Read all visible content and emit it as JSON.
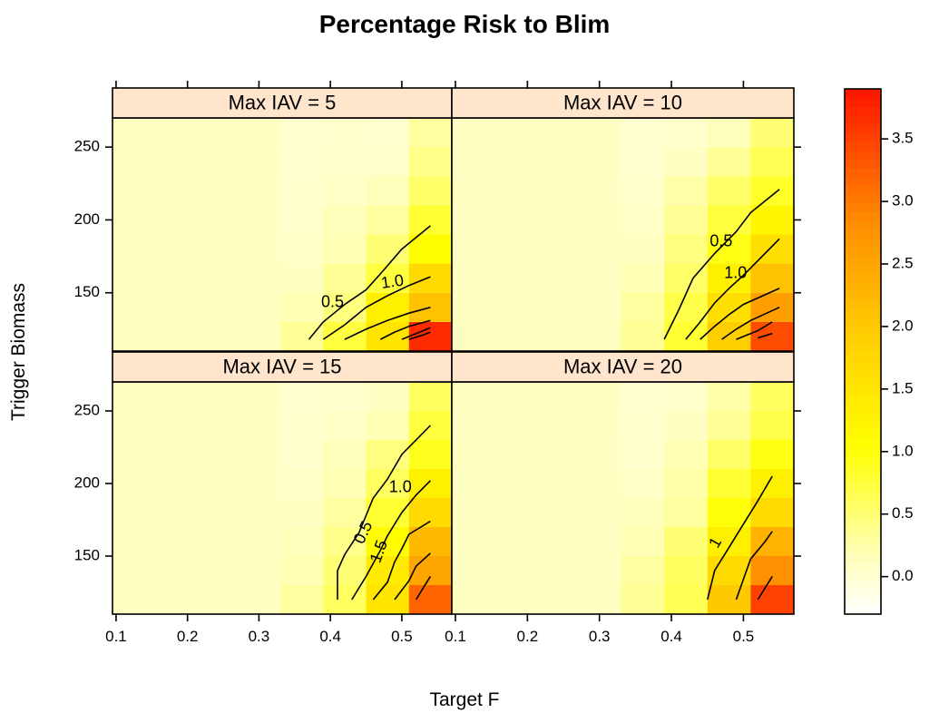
{
  "chart_data": {
    "type": "heatmap",
    "title": "Percentage Risk to Blim",
    "xlabel": "Target F",
    "ylabel": "Trigger Biomass",
    "xlim": [
      0.095,
      0.57
    ],
    "ylim": [
      110,
      270
    ],
    "x_ticks": [
      0.1,
      0.2,
      0.3,
      0.4,
      0.5
    ],
    "x_tick_labels": [
      "0.1",
      "0.2",
      "0.3",
      "0.4",
      "0.5"
    ],
    "y_ticks": [
      150,
      200,
      250
    ],
    "y_tick_labels": [
      "150",
      "200",
      "250"
    ],
    "colorbar": {
      "ticks": [
        0.0,
        0.5,
        1.0,
        1.5,
        2.0,
        2.5,
        3.0,
        3.5
      ],
      "tick_labels": [
        "0.0",
        "0.5",
        "1.0",
        "1.5",
        "2.0",
        "2.5",
        "3.0",
        "3.5"
      ],
      "range": [
        -0.3,
        3.9
      ]
    },
    "grid_x": [
      0.36,
      0.42,
      0.48,
      0.54
    ],
    "grid_y": [
      120,
      140,
      160,
      180,
      200,
      220,
      240,
      260
    ],
    "panels": [
      {
        "label": "Max IAV = 5",
        "values": [
          [
            0.35,
            0.75,
            1.5,
            3.7
          ],
          [
            0.2,
            0.45,
            1.3,
            2.1
          ],
          [
            0.1,
            0.35,
            0.75,
            1.7
          ],
          [
            0.08,
            0.2,
            0.5,
            1.1
          ],
          [
            0.05,
            0.15,
            0.3,
            0.8
          ],
          [
            0.03,
            0.08,
            0.15,
            0.55
          ],
          [
            0.02,
            0.05,
            0.06,
            0.4
          ],
          [
            0.02,
            0.03,
            0.02,
            0.3
          ]
        ],
        "contours": [
          {
            "label": "0.5",
            "points": [
              [
                0.37,
                118
              ],
              [
                0.39,
                130
              ],
              [
                0.42,
                142
              ],
              [
                0.45,
                152
              ],
              [
                0.47,
                163
              ],
              [
                0.5,
                180
              ],
              [
                0.54,
                196
              ]
            ]
          },
          {
            "label": "1.0",
            "points": [
              [
                0.39,
                118
              ],
              [
                0.42,
                128
              ],
              [
                0.45,
                140
              ],
              [
                0.48,
                148
              ],
              [
                0.51,
                155
              ],
              [
                0.54,
                161
              ]
            ]
          },
          {
            "label": "",
            "points": [
              [
                0.42,
                118
              ],
              [
                0.45,
                125
              ],
              [
                0.48,
                131
              ],
              [
                0.51,
                136
              ],
              [
                0.54,
                140
              ]
            ]
          },
          {
            "label": "",
            "points": [
              [
                0.47,
                118
              ],
              [
                0.49,
                123
              ],
              [
                0.51,
                127
              ],
              [
                0.54,
                131
              ]
            ]
          },
          {
            "label": "",
            "points": [
              [
                0.5,
                118
              ],
              [
                0.52,
                122
              ],
              [
                0.54,
                126
              ]
            ]
          },
          {
            "label": "",
            "points": [
              [
                0.51,
                118
              ],
              [
                0.53,
                121
              ],
              [
                0.54,
                123
              ]
            ]
          }
        ],
        "contour_labels": [
          {
            "text": "0.5",
            "x": 0.403,
            "y": 143,
            "angle": 0
          },
          {
            "text": "1.0",
            "x": 0.487,
            "y": 157,
            "angle": -8
          }
        ]
      },
      {
        "label": "Max IAV = 10",
        "values": [
          [
            0.35,
            0.8,
            1.9,
            3.4
          ],
          [
            0.3,
            0.7,
            1.6,
            2.6
          ],
          [
            0.2,
            0.55,
            1.3,
            2.1
          ],
          [
            0.12,
            0.45,
            0.95,
            1.6
          ],
          [
            0.08,
            0.35,
            0.75,
            1.2
          ],
          [
            0.05,
            0.25,
            0.55,
            0.85
          ],
          [
            0.02,
            0.1,
            0.35,
            0.65
          ],
          [
            0.01,
            0.05,
            0.15,
            0.5
          ]
        ],
        "contours": [
          {
            "label": "0.5",
            "points": [
              [
                0.39,
                118
              ],
              [
                0.41,
                138
              ],
              [
                0.43,
                160
              ],
              [
                0.46,
                177
              ],
              [
                0.49,
                192
              ],
              [
                0.51,
                205
              ],
              [
                0.55,
                221
              ]
            ]
          },
          {
            "label": "1.0",
            "points": [
              [
                0.42,
                118
              ],
              [
                0.44,
                130
              ],
              [
                0.46,
                143
              ],
              [
                0.48,
                153
              ],
              [
                0.5,
                162
              ],
              [
                0.52,
                172
              ],
              [
                0.55,
                187
              ]
            ]
          },
          {
            "label": "",
            "points": [
              [
                0.44,
                118
              ],
              [
                0.46,
                127
              ],
              [
                0.48,
                135
              ],
              [
                0.5,
                142
              ],
              [
                0.55,
                153
              ]
            ]
          },
          {
            "label": "",
            "points": [
              [
                0.47,
                118
              ],
              [
                0.49,
                125
              ],
              [
                0.51,
                131
              ],
              [
                0.55,
                140
              ]
            ]
          },
          {
            "label": "",
            "points": [
              [
                0.49,
                118
              ],
              [
                0.52,
                124
              ],
              [
                0.54,
                130
              ]
            ]
          },
          {
            "label": "",
            "points": [
              [
                0.52,
                119
              ],
              [
                0.54,
                122
              ]
            ]
          }
        ],
        "contour_labels": [
          {
            "text": "0.5",
            "x": 0.469,
            "y": 185,
            "angle": 0
          },
          {
            "text": "1.0",
            "x": 0.489,
            "y": 163,
            "angle": 0
          }
        ]
      },
      {
        "label": "Max IAV = 15",
        "values": [
          [
            0.3,
            0.6,
            1.5,
            3.2
          ],
          [
            0.2,
            0.5,
            1.4,
            2.5
          ],
          [
            0.15,
            0.4,
            1.1,
            2.2
          ],
          [
            0.1,
            0.3,
            0.8,
            1.7
          ],
          [
            0.08,
            0.2,
            0.6,
            1.3
          ],
          [
            0.05,
            0.15,
            0.45,
            0.9
          ],
          [
            0.03,
            0.08,
            0.2,
            0.75
          ],
          [
            0.02,
            0.04,
            0.1,
            0.6
          ]
        ],
        "contours": [
          {
            "label": "0.5",
            "points": [
              [
                0.41,
                120
              ],
              [
                0.41,
                140
              ],
              [
                0.42,
                151
              ],
              [
                0.44,
                166
              ],
              [
                0.46,
                190
              ],
              [
                0.48,
                203
              ],
              [
                0.5,
                220
              ],
              [
                0.54,
                240
              ]
            ]
          },
          {
            "label": "1.0",
            "points": [
              [
                0.43,
                120
              ],
              [
                0.45,
                136
              ],
              [
                0.47,
                154
              ],
              [
                0.48,
                164
              ],
              [
                0.5,
                180
              ],
              [
                0.52,
                192
              ],
              [
                0.54,
                202
              ]
            ]
          },
          {
            "label": "1.5",
            "points": [
              [
                0.46,
                120
              ],
              [
                0.48,
                132
              ],
              [
                0.49,
                146
              ],
              [
                0.5,
                155
              ],
              [
                0.51,
                165
              ],
              [
                0.54,
                174
              ]
            ]
          },
          {
            "label": "",
            "points": [
              [
                0.49,
                120
              ],
              [
                0.51,
                133
              ],
              [
                0.52,
                143
              ],
              [
                0.54,
                152
              ]
            ]
          },
          {
            "label": "",
            "points": [
              [
                0.52,
                120
              ],
              [
                0.53,
                128
              ],
              [
                0.54,
                136
              ]
            ]
          }
        ],
        "contour_labels": [
          {
            "text": "0.5",
            "x": 0.447,
            "y": 166,
            "angle": -65
          },
          {
            "text": "1.0",
            "x": 0.498,
            "y": 197,
            "angle": 0
          },
          {
            "text": "1.5",
            "x": 0.469,
            "y": 153,
            "angle": -70
          }
        ]
      },
      {
        "label": "Max IAV = 20",
        "values": [
          [
            0.35,
            0.65,
            2.0,
            3.5
          ],
          [
            0.3,
            0.6,
            1.7,
            2.8
          ],
          [
            0.2,
            0.5,
            1.3,
            2.3
          ],
          [
            0.15,
            0.3,
            1.0,
            1.7
          ],
          [
            0.08,
            0.25,
            0.8,
            1.3
          ],
          [
            0.05,
            0.2,
            0.55,
            0.95
          ],
          [
            0.03,
            0.1,
            0.35,
            0.7
          ],
          [
            0.02,
            0.05,
            0.25,
            0.6
          ]
        ],
        "contours": [
          {
            "label": "1",
            "points": [
              [
                0.45,
                120
              ],
              [
                0.46,
                140
              ],
              [
                0.48,
                156
              ],
              [
                0.5,
                172
              ],
              [
                0.52,
                188
              ],
              [
                0.54,
                205
              ]
            ]
          },
          {
            "label": "",
            "points": [
              [
                0.49,
                120
              ],
              [
                0.5,
                134
              ],
              [
                0.51,
                148
              ],
              [
                0.53,
                160
              ],
              [
                0.54,
                167
              ]
            ]
          },
          {
            "label": "",
            "points": [
              [
                0.52,
                120
              ],
              [
                0.54,
                136
              ]
            ]
          }
        ],
        "contour_labels": [
          {
            "text": "1",
            "x": 0.462,
            "y": 159,
            "angle": -60
          }
        ]
      }
    ]
  }
}
